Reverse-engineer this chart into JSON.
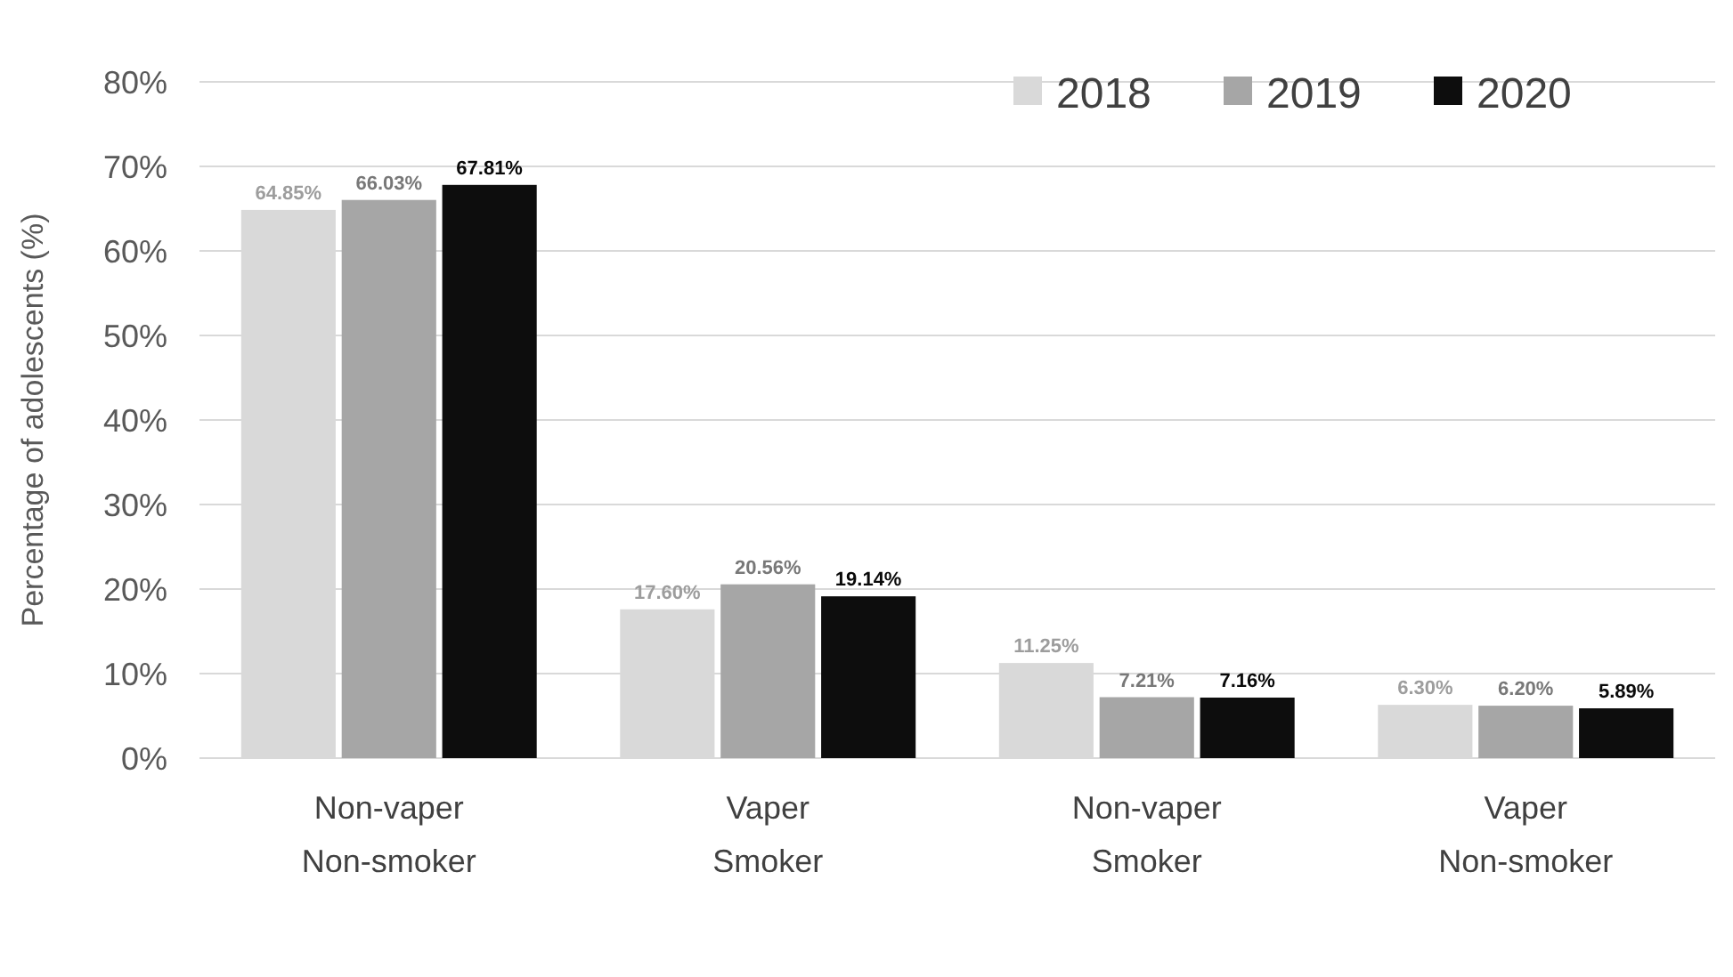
{
  "chart_data": {
    "type": "bar",
    "ylabel": "Percentage of adolescents (%)",
    "categories": [
      "Non-vaper\nNon-smoker",
      "Vaper\nSmoker",
      "Non-vaper\nSmoker",
      "Vaper\nNon-smoker"
    ],
    "series": [
      {
        "name": "2018",
        "color": "#d9d9d9",
        "values": [
          64.85,
          17.6,
          11.25,
          6.3
        ],
        "value_labels": [
          "64.85%",
          "17.60%",
          "11.25%",
          "6.30%"
        ]
      },
      {
        "name": "2019",
        "color": "#a6a6a6",
        "values": [
          66.03,
          20.56,
          7.21,
          6.2
        ],
        "value_labels": [
          "66.03%",
          "20.56%",
          "7.21%",
          "6.20%"
        ]
      },
      {
        "name": "2020",
        "color": "#0d0d0d",
        "values": [
          67.81,
          19.14,
          7.16,
          5.89
        ],
        "value_labels": [
          "67.81%",
          "19.14%",
          "7.16%",
          "5.89%"
        ]
      }
    ],
    "ylim": [
      0,
      80
    ],
    "yticks": [
      {
        "value": 0,
        "label": "0%"
      },
      {
        "value": 10,
        "label": "10%"
      },
      {
        "value": 20,
        "label": "20%"
      },
      {
        "value": 30,
        "label": "30%"
      },
      {
        "value": 40,
        "label": "40%"
      },
      {
        "value": 50,
        "label": "50%"
      },
      {
        "value": 60,
        "label": "60%"
      },
      {
        "value": 70,
        "label": "70%"
      },
      {
        "value": 80,
        "label": "80%"
      }
    ],
    "grid": "y",
    "legend": "top right"
  }
}
